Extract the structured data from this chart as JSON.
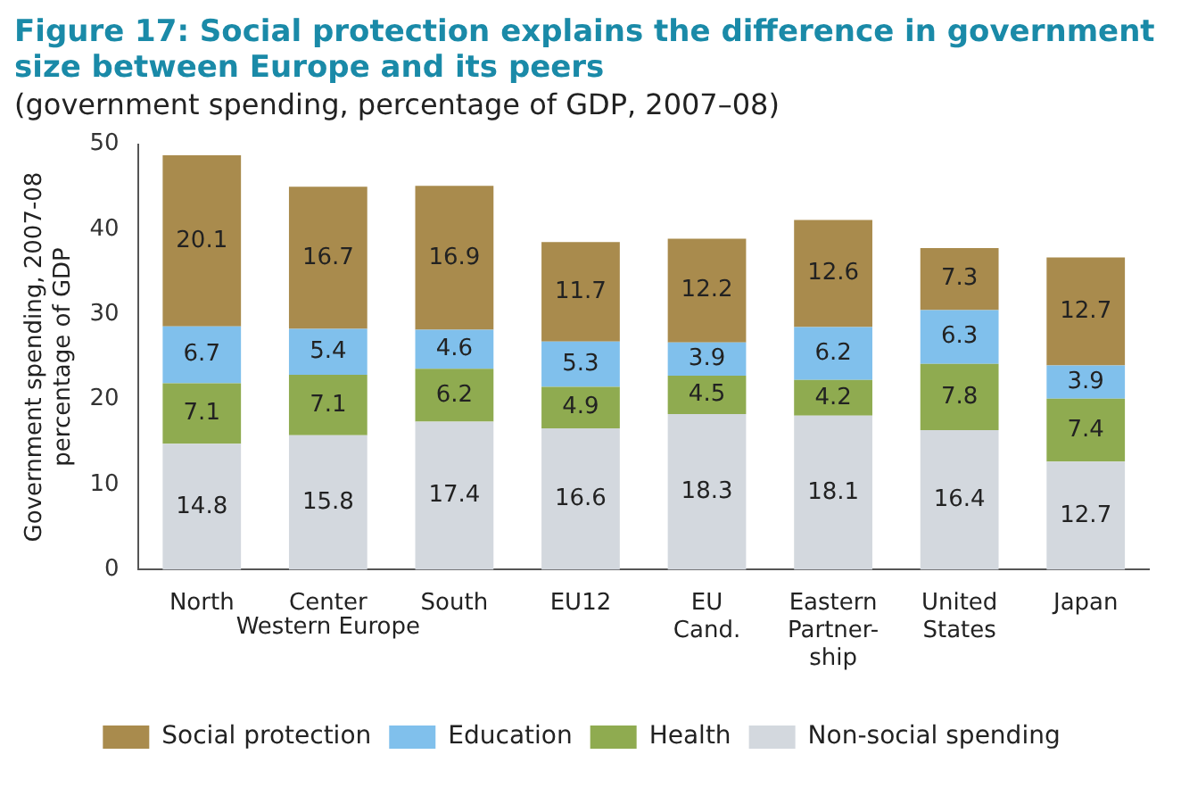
{
  "chart_data": {
    "type": "bar",
    "title": "Figure 17: Social protection explains the difference in government size between Europe and its peers",
    "subtitle": "(government spending, percentage of GDP, 2007–08)",
    "ylabel": "Government spending, 2007-08\npercentage of GDP",
    "categories": [
      "North",
      "Center",
      "South",
      "EU12",
      "EU Cand.",
      "Eastern Partner-ship",
      "United States",
      "Japan"
    ],
    "stacked": true,
    "data_labels": true,
    "legend": "bottom",
    "grid": false,
    "ylim": [
      0,
      50
    ],
    "yticks": [
      0,
      10,
      20,
      30,
      40,
      50
    ],
    "annotations": [
      "Western Europe"
    ],
    "series": [
      {
        "name": "Non-social spending",
        "color": "#d3d8de",
        "values": [
          14.8,
          15.8,
          17.4,
          16.6,
          18.3,
          18.1,
          16.4,
          12.7
        ]
      },
      {
        "name": "Health",
        "color": "#8fab50",
        "values": [
          7.1,
          7.1,
          6.2,
          4.9,
          4.5,
          4.2,
          7.8,
          7.4
        ]
      },
      {
        "name": "Education",
        "color": "#80c0ec",
        "values": [
          6.7,
          5.4,
          4.6,
          5.3,
          3.9,
          6.2,
          6.3,
          3.9
        ]
      },
      {
        "name": "Social protection",
        "color": "#a98b4d",
        "values": [
          20.1,
          16.7,
          16.9,
          11.7,
          12.2,
          12.6,
          7.3,
          12.7
        ]
      }
    ]
  }
}
